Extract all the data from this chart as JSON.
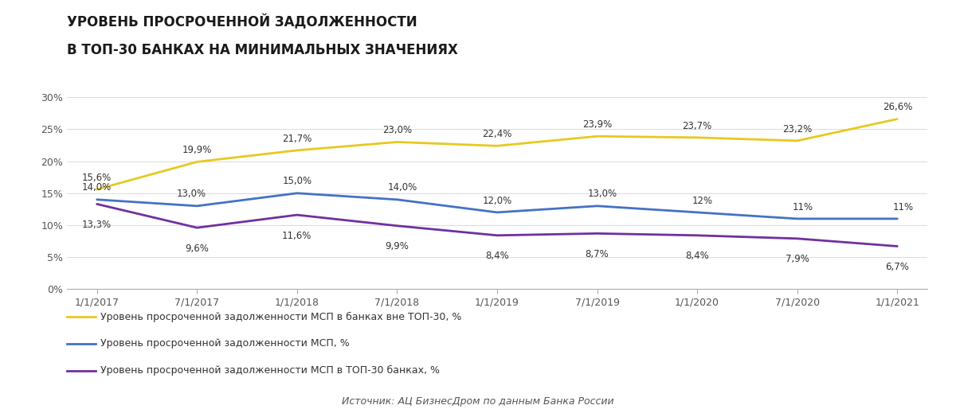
{
  "title_line1": "УРОВЕНЬ ПРОСРОЧЕННОЙ ЗАДОЛЖЕННОСТИ",
  "title_line2": "В ТОП-30 БАНКАХ НА МИНИМАЛЬНЫХ ЗНАЧЕНИЯХ",
  "x_labels": [
    "1/1/2017",
    "7/1/2017",
    "1/1/2018",
    "7/1/2018",
    "1/1/2019",
    "7/1/2019",
    "1/1/2020",
    "7/1/2020",
    "1/1/2021"
  ],
  "series_non_top30": {
    "values": [
      15.6,
      19.9,
      21.7,
      23.0,
      22.4,
      23.9,
      23.7,
      23.2,
      26.6
    ],
    "labels": [
      "15,6%",
      "19,9%",
      "21,7%",
      "23,0%",
      "22,4%",
      "23,9%",
      "23,7%",
      "23,2%",
      "26,6%"
    ],
    "color": "#E8C820",
    "label": "Уровень просроченной задолженности МСП в банках вне ТОП-30, %"
  },
  "series_total": {
    "values": [
      14.0,
      13.0,
      15.0,
      14.0,
      12.0,
      13.0,
      12.0,
      11.0,
      11.0
    ],
    "labels": [
      "14,0%",
      "13,0%",
      "15,0%",
      "14,0%",
      "12,0%",
      "13,0%",
      "12%",
      "11%",
      "11%"
    ],
    "color": "#4472C4",
    "label": "Уровень просроченной задолженности МСП, %"
  },
  "series_top30": {
    "values": [
      13.3,
      9.6,
      11.6,
      9.9,
      8.4,
      8.7,
      8.4,
      7.9,
      6.7
    ],
    "labels": [
      "13,3%",
      "9,6%",
      "11,6%",
      "9,9%",
      "8,4%",
      "8,7%",
      "8,4%",
      "7,9%",
      "6,7%"
    ],
    "color": "#7030A0",
    "label": "Уровень просроченной задолженности МСП в ТОП-30 банках, %"
  },
  "ylim": [
    0,
    31
  ],
  "yticks": [
    0,
    5,
    10,
    15,
    20,
    25,
    30
  ],
  "ytick_labels": [
    "0%",
    "5%",
    "10%",
    "15%",
    "20%",
    "25%",
    "30%"
  ],
  "source_text": "Источник: АЦ БизнесДром по данным Банка России",
  "background_color": "#FFFFFF",
  "line_width": 2.0
}
